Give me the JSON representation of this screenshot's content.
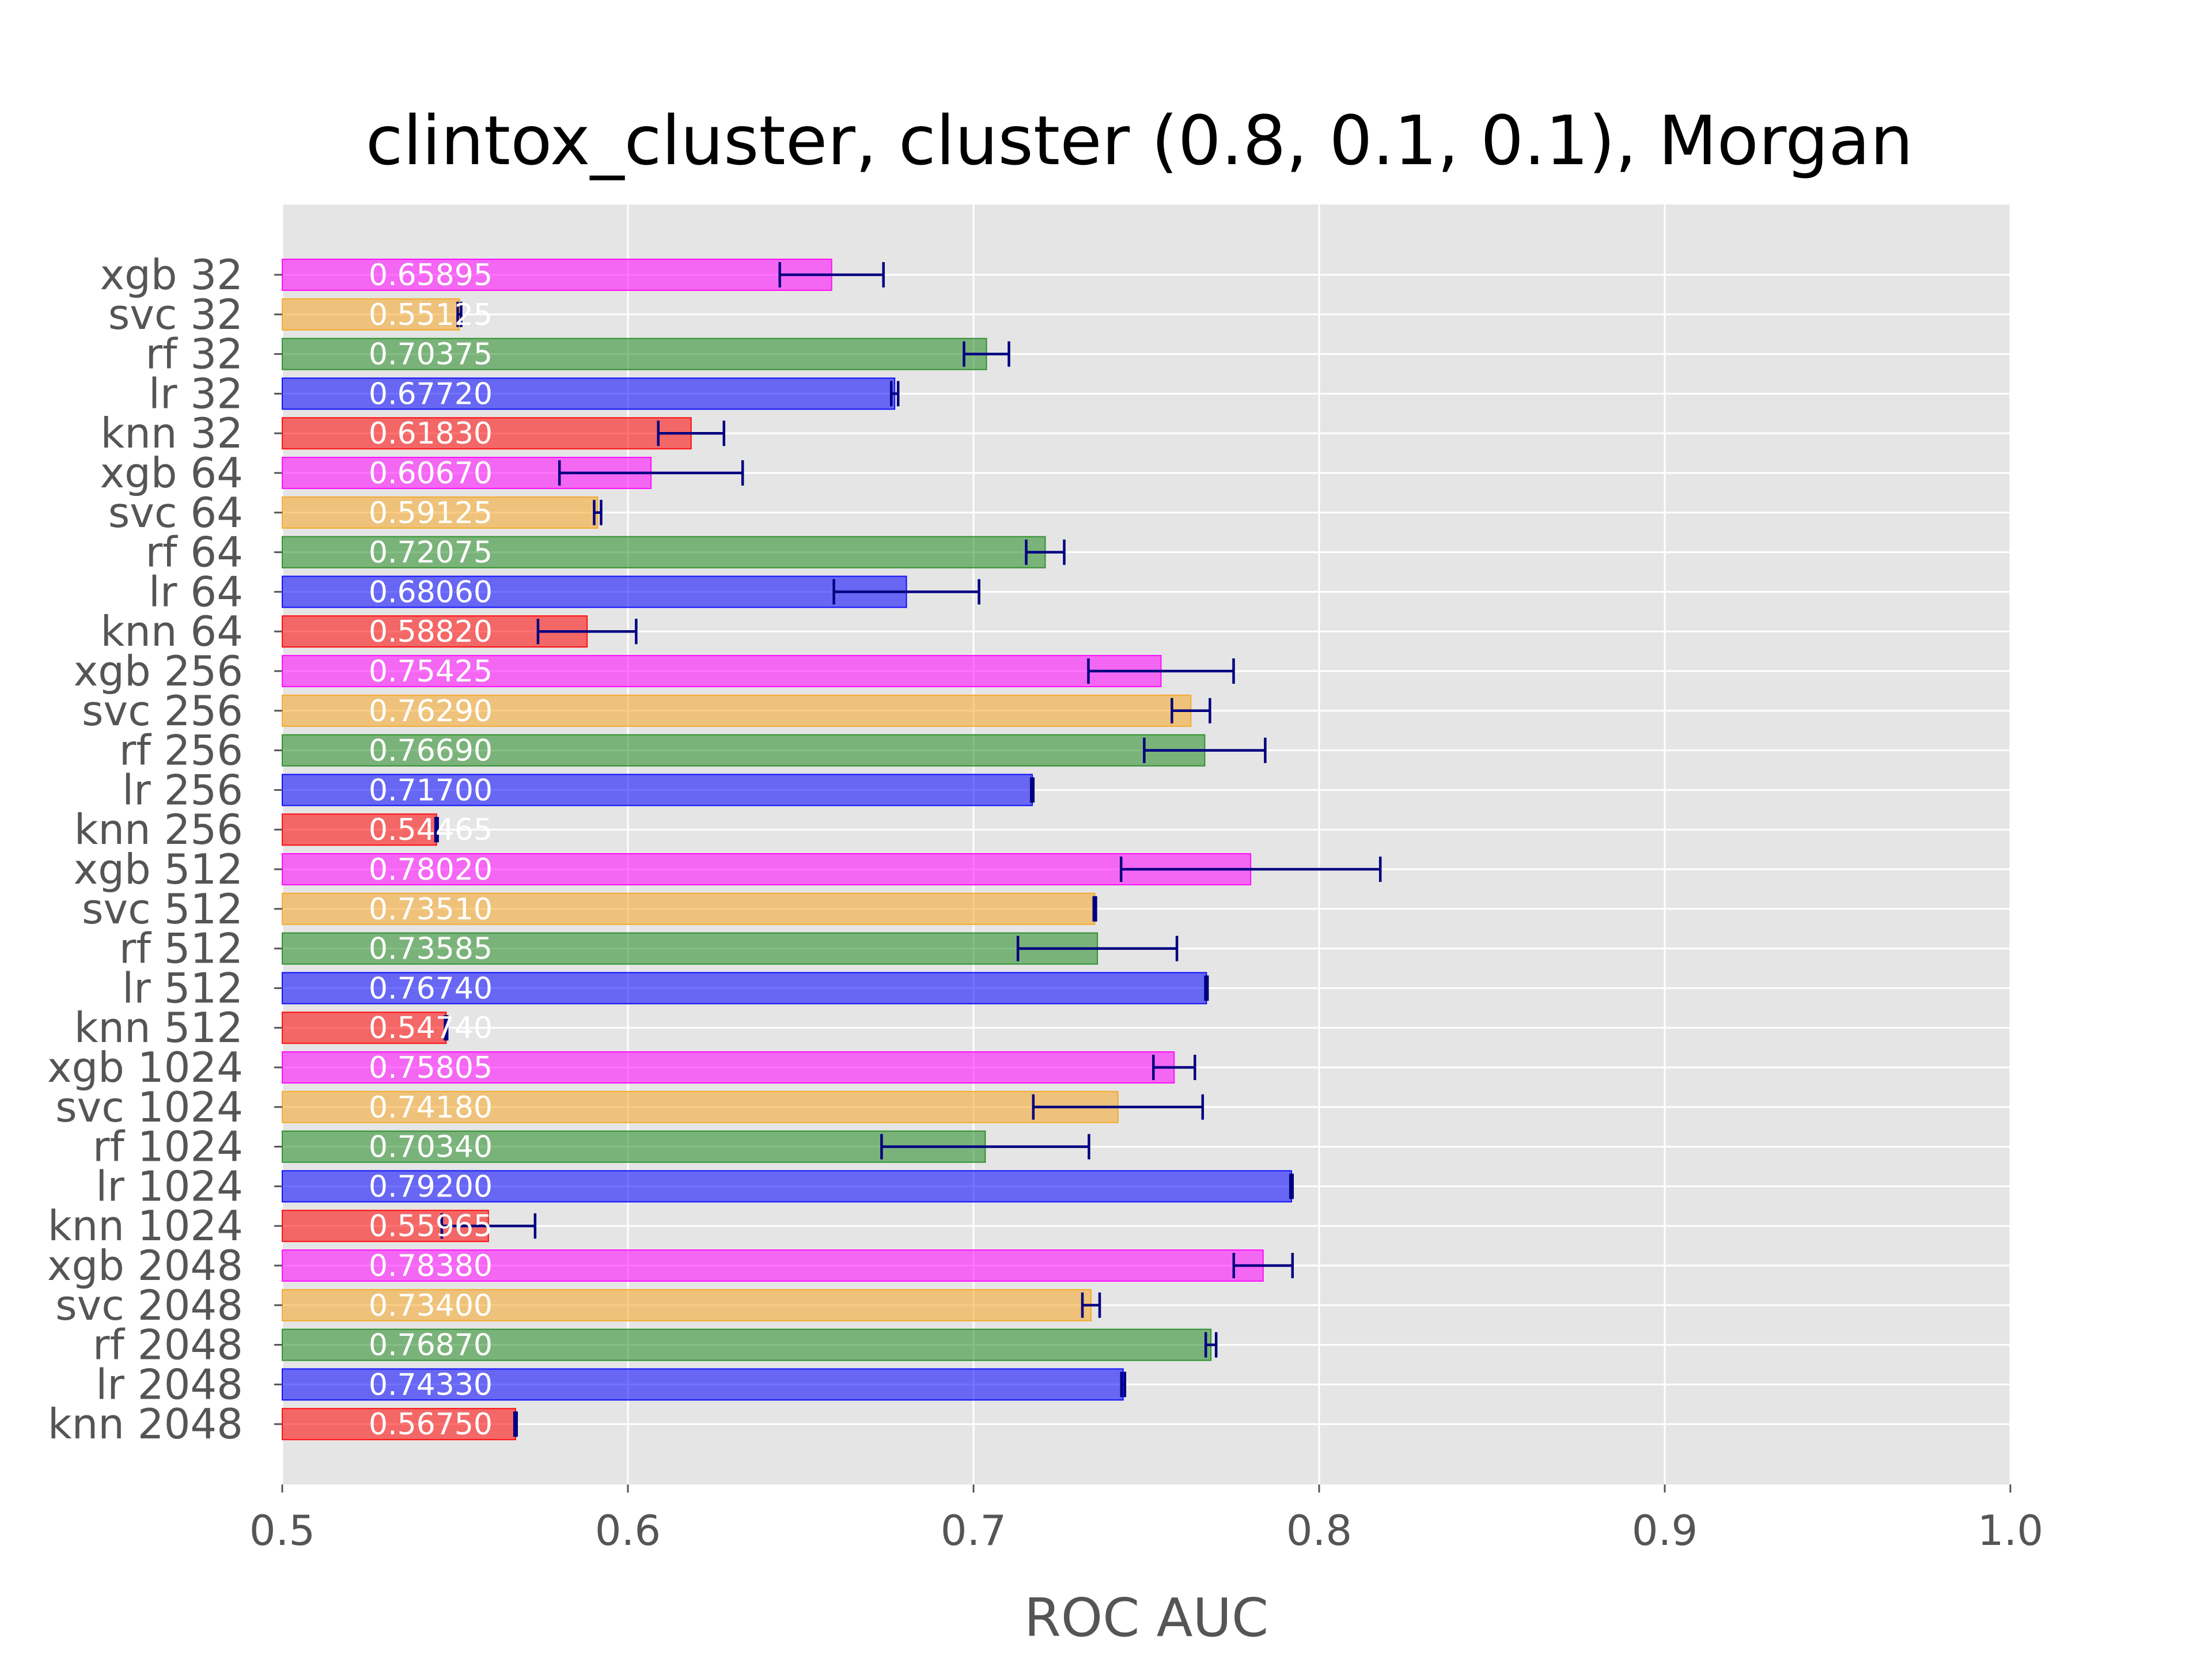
{
  "chart_data": {
    "type": "bar",
    "orientation": "horizontal",
    "title": "clintox_cluster, cluster (0.8, 0.1, 0.1), Morgan",
    "xlabel": "ROC AUC",
    "ylabel": "",
    "xlim": [
      0.5,
      1.0
    ],
    "xticks": [
      "0.5",
      "0.6",
      "0.7",
      "0.8",
      "0.9",
      "1.0"
    ],
    "grid": true,
    "background": "#e5e5e5",
    "error_bar_color": "#000080",
    "model_colors": {
      "xgb": "#ff00ff",
      "svc": "#f5a623",
      "rf": "#228b22",
      "lr": "#0000ff",
      "knn": "#ff0000"
    },
    "bars": [
      {
        "label": "xgb 32",
        "model": "xgb",
        "value": 0.65895,
        "value_text": "0.65895",
        "err": 0.015
      },
      {
        "label": "svc 32",
        "model": "svc",
        "value": 0.55125,
        "value_text": "0.55125",
        "err": 0.0005
      },
      {
        "label": "rf 32",
        "model": "rf",
        "value": 0.70375,
        "value_text": "0.70375",
        "err": 0.0065
      },
      {
        "label": "lr 32",
        "model": "lr",
        "value": 0.6772,
        "value_text": "0.67720",
        "err": 0.001
      },
      {
        "label": "knn 32",
        "model": "knn",
        "value": 0.6183,
        "value_text": "0.61830",
        "err": 0.0095
      },
      {
        "label": "xgb 64",
        "model": "xgb",
        "value": 0.6067,
        "value_text": "0.60670",
        "err": 0.0265
      },
      {
        "label": "svc 64",
        "model": "svc",
        "value": 0.59125,
        "value_text": "0.59125",
        "err": 0.001
      },
      {
        "label": "rf 64",
        "model": "rf",
        "value": 0.72075,
        "value_text": "0.72075",
        "err": 0.0055
      },
      {
        "label": "lr 64",
        "model": "lr",
        "value": 0.6806,
        "value_text": "0.68060",
        "err": 0.021
      },
      {
        "label": "knn 64",
        "model": "knn",
        "value": 0.5882,
        "value_text": "0.58820",
        "err": 0.0142
      },
      {
        "label": "xgb 256",
        "model": "xgb",
        "value": 0.75425,
        "value_text": "0.75425",
        "err": 0.021
      },
      {
        "label": "svc 256",
        "model": "svc",
        "value": 0.7629,
        "value_text": "0.76290",
        "err": 0.0055
      },
      {
        "label": "rf 256",
        "model": "rf",
        "value": 0.7669,
        "value_text": "0.76690",
        "err": 0.0175
      },
      {
        "label": "lr 256",
        "model": "lr",
        "value": 0.717,
        "value_text": "0.71700",
        "err": 0.0003
      },
      {
        "label": "knn 256",
        "model": "knn",
        "value": 0.54465,
        "value_text": "0.54465",
        "err": 0.0003
      },
      {
        "label": "xgb 512",
        "model": "xgb",
        "value": 0.7802,
        "value_text": "0.78020",
        "err": 0.0375
      },
      {
        "label": "svc 512",
        "model": "svc",
        "value": 0.7351,
        "value_text": "0.73510",
        "err": 0.0003
      },
      {
        "label": "rf 512",
        "model": "rf",
        "value": 0.73585,
        "value_text": "0.73585",
        "err": 0.023
      },
      {
        "label": "lr 512",
        "model": "lr",
        "value": 0.7674,
        "value_text": "0.76740",
        "err": 0.0003
      },
      {
        "label": "knn 512",
        "model": "knn",
        "value": 0.5474,
        "value_text": "0.54740",
        "err": 0.0003
      },
      {
        "label": "xgb 1024",
        "model": "xgb",
        "value": 0.75805,
        "value_text": "0.75805",
        "err": 0.006
      },
      {
        "label": "svc 1024",
        "model": "svc",
        "value": 0.7418,
        "value_text": "0.74180",
        "err": 0.0245
      },
      {
        "label": "rf 1024",
        "model": "rf",
        "value": 0.7034,
        "value_text": "0.70340",
        "err": 0.03
      },
      {
        "label": "lr 1024",
        "model": "lr",
        "value": 0.792,
        "value_text": "0.79200",
        "err": 0.0003
      },
      {
        "label": "knn 1024",
        "model": "knn",
        "value": 0.55965,
        "value_text": "0.55965",
        "err": 0.0135
      },
      {
        "label": "xgb 2048",
        "model": "xgb",
        "value": 0.7838,
        "value_text": "0.78380",
        "err": 0.0085
      },
      {
        "label": "svc 2048",
        "model": "svc",
        "value": 0.734,
        "value_text": "0.73400",
        "err": 0.0025
      },
      {
        "label": "rf 2048",
        "model": "rf",
        "value": 0.7687,
        "value_text": "0.76870",
        "err": 0.0015
      },
      {
        "label": "lr 2048",
        "model": "lr",
        "value": 0.7433,
        "value_text": "0.74330",
        "err": 0.0005
      },
      {
        "label": "knn 2048",
        "model": "knn",
        "value": 0.5675,
        "value_text": "0.56750",
        "err": 0.0003
      }
    ]
  }
}
